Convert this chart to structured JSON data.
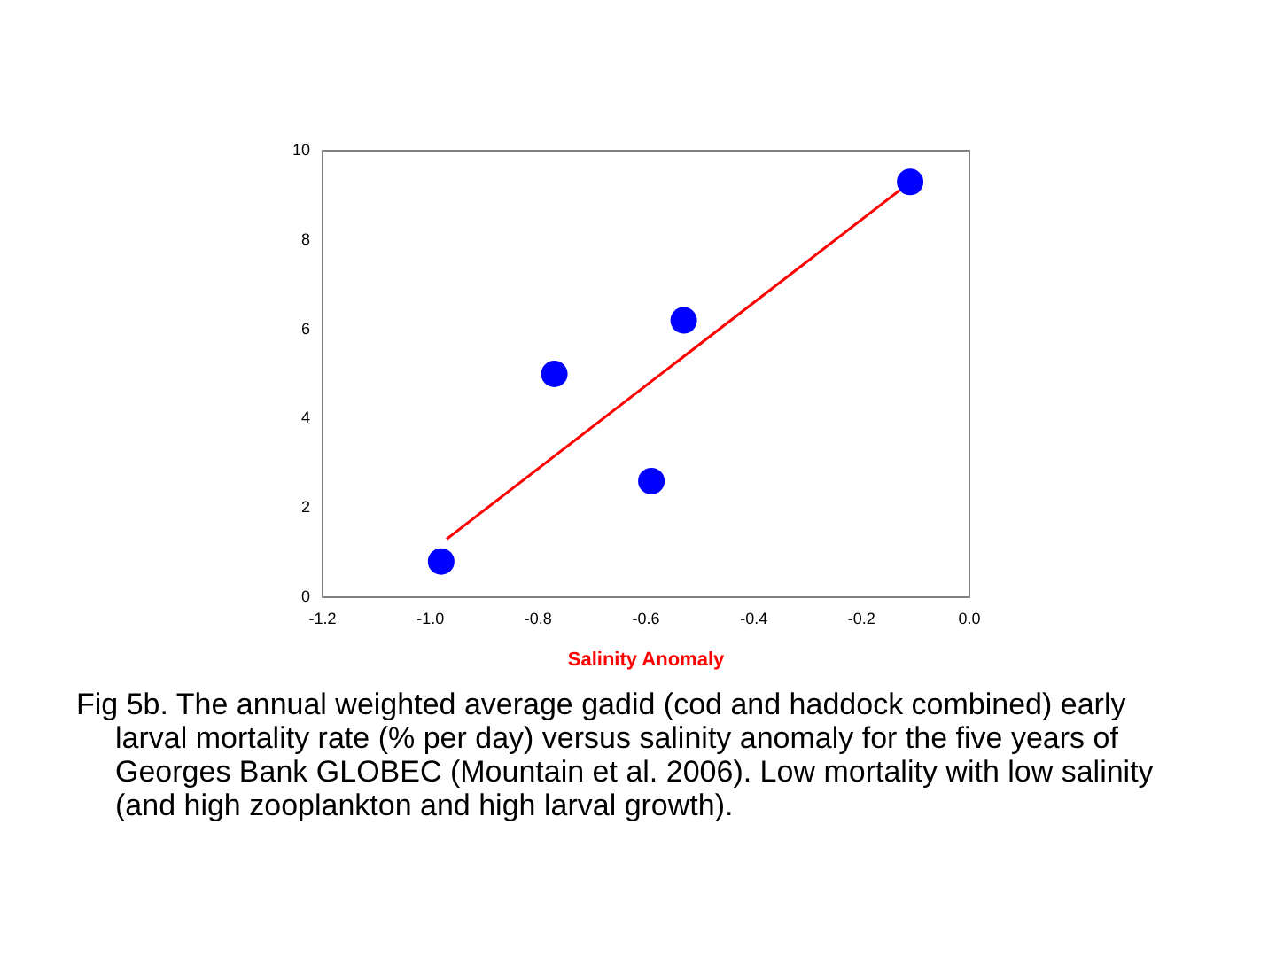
{
  "chart_data": {
    "type": "scatter",
    "xlabel": "Salinity Anomaly",
    "x": [
      -0.98,
      -0.77,
      -0.59,
      -0.53,
      -0.11
    ],
    "series": [
      {
        "color": "#0000ff",
        "values": [
          0.8,
          5.0,
          2.6,
          6.2,
          9.3
        ]
      },
      {
        "type": "line",
        "color": "#ff0000",
        "marker": "none",
        "x": [
          -0.97,
          -0.12
        ],
        "values": [
          1.3,
          9.2
        ]
      }
    ],
    "xlim": [
      -1.2,
      0.0
    ],
    "xticks": [
      {
        "value": -1.2,
        "label": "-1.2"
      },
      {
        "value": -1.0,
        "label": "-1.0"
      },
      {
        "value": -0.8,
        "label": "-0.8"
      },
      {
        "value": -0.6,
        "label": "-0.6"
      },
      {
        "value": -0.4,
        "label": "-0.4"
      },
      {
        "value": -0.2,
        "label": "-0.2"
      },
      {
        "value": 0.0,
        "label": "0.0"
      }
    ],
    "ylim": [
      0,
      10
    ],
    "yticks": [
      0,
      2,
      4,
      6,
      8,
      10
    ],
    "grid": false,
    "legend": false,
    "marker": "circle",
    "annotations": [
      "Fig 5b.  The annual weighted average gadid (cod and haddock combined) early larval mortality rate (% per day) versus salinity anomaly for the five years of Georges Bank GLOBEC (Mountain et al. 2006).  Low mortality with low salinity (and high zooplankton and high larval growth)."
    ]
  }
}
